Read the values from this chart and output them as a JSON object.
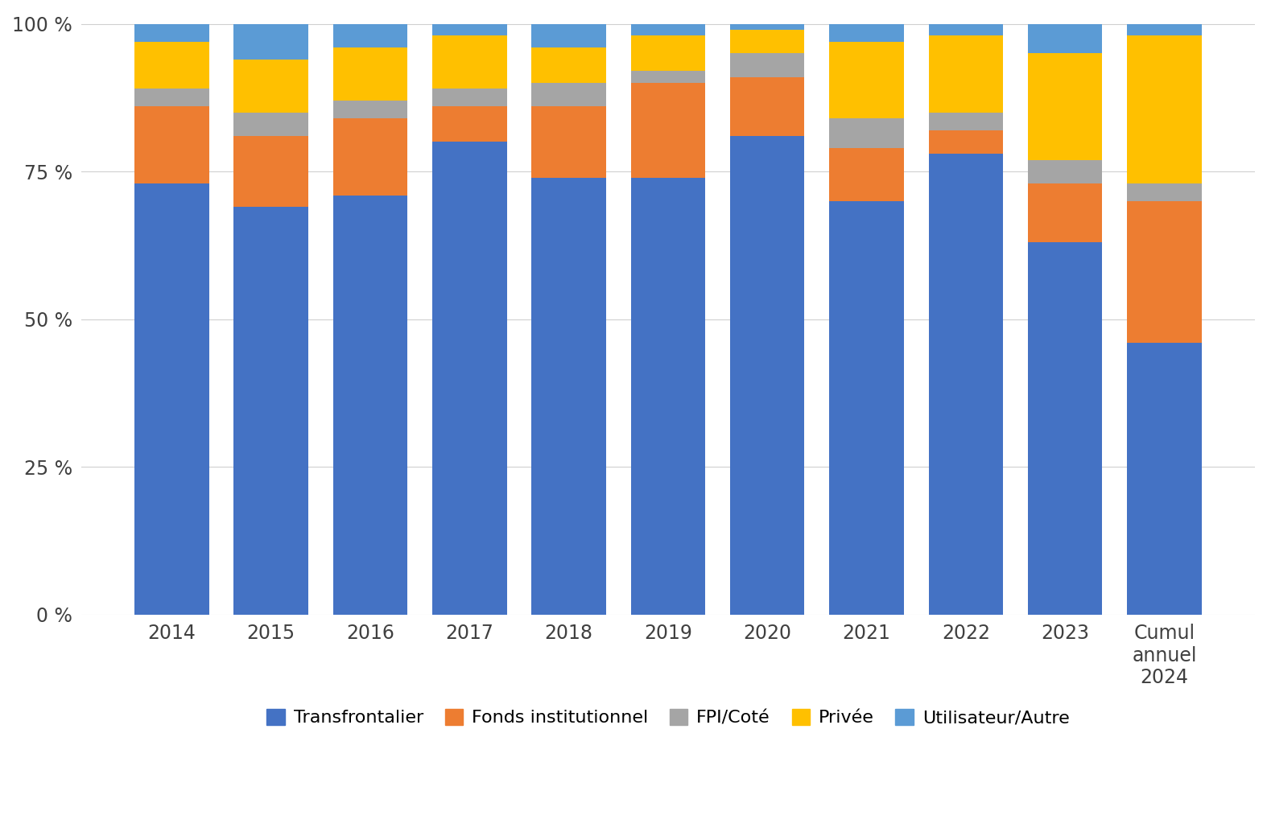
{
  "categories": [
    "2014",
    "2015",
    "2016",
    "2017",
    "2018",
    "2019",
    "2020",
    "2021",
    "2022",
    "2023",
    "Cumul\nannuel\n2024"
  ],
  "series": {
    "Transfrontalier": [
      73,
      69,
      71,
      80,
      74,
      74,
      81,
      70,
      78,
      63,
      46
    ],
    "Fonds institutionnel": [
      13,
      12,
      13,
      6,
      12,
      16,
      10,
      9,
      4,
      10,
      24
    ],
    "FPI/Coté": [
      3,
      4,
      3,
      3,
      4,
      2,
      4,
      5,
      3,
      4,
      3
    ],
    "Privée": [
      8,
      9,
      9,
      9,
      6,
      6,
      4,
      13,
      13,
      18,
      25
    ],
    "Utilisateur/Autre": [
      3,
      6,
      4,
      2,
      4,
      2,
      1,
      3,
      2,
      5,
      2
    ]
  },
  "colors": {
    "Transfrontalier": "#4472C4",
    "Fonds institutionnel": "#ED7D31",
    "FPI/Coté": "#A5A5A5",
    "Privée": "#FFC000",
    "Utilisateur/Autre": "#5B9BD5"
  },
  "yticks": [
    0,
    25,
    50,
    75,
    100
  ],
  "ytick_labels": [
    "0 %",
    "25 %",
    "50 %",
    "75 %",
    "100 %"
  ],
  "ylim": [
    0,
    102
  ],
  "legend_order": [
    "Transfrontalier",
    "Fonds institutionnel",
    "FPI/Coté",
    "Privée",
    "Utilisateur/Autre"
  ],
  "background_color": "#FFFFFF",
  "grid_color": "#D0D0D0",
  "bar_width": 0.75,
  "figsize": [
    15.74,
    10.29
  ],
  "dpi": 100
}
